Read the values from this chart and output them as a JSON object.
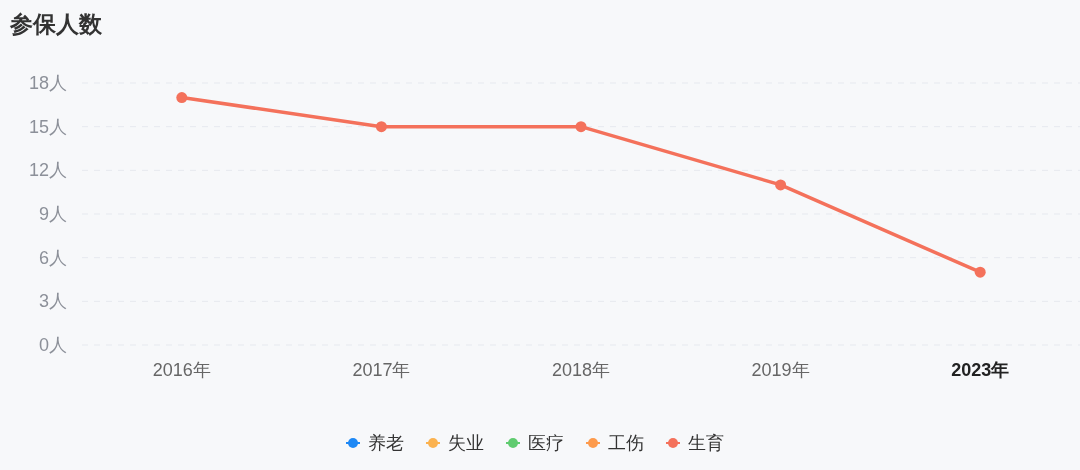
{
  "chart_data": {
    "type": "line",
    "title": "参保人数",
    "categories": [
      "2016年",
      "2017年",
      "2018年",
      "2019年",
      "2023年"
    ],
    "series": [
      {
        "name": "养老",
        "color": "#1e88f5",
        "values": [
          null,
          null,
          null,
          null,
          null
        ]
      },
      {
        "name": "失业",
        "color": "#fbb24f",
        "values": [
          null,
          null,
          null,
          null,
          null
        ]
      },
      {
        "name": "医疗",
        "color": "#5fcb6f",
        "values": [
          null,
          null,
          null,
          null,
          null
        ]
      },
      {
        "name": "工伤",
        "color": "#fd9a4c",
        "values": [
          null,
          null,
          null,
          null,
          null
        ]
      },
      {
        "name": "生育",
        "color": "#f4715b",
        "values": [
          17,
          15,
          15,
          11,
          5
        ]
      }
    ],
    "ylim": [
      0,
      18
    ],
    "yticks": [
      {
        "value": 0,
        "label": "0人"
      },
      {
        "value": 3,
        "label": "3人"
      },
      {
        "value": 6,
        "label": "6人"
      },
      {
        "value": 9,
        "label": "9人"
      },
      {
        "value": 12,
        "label": "12人"
      },
      {
        "value": 15,
        "label": "15人"
      },
      {
        "value": 18,
        "label": "18人"
      }
    ],
    "grid": "y",
    "legend": "bottom",
    "marker": "circle"
  }
}
